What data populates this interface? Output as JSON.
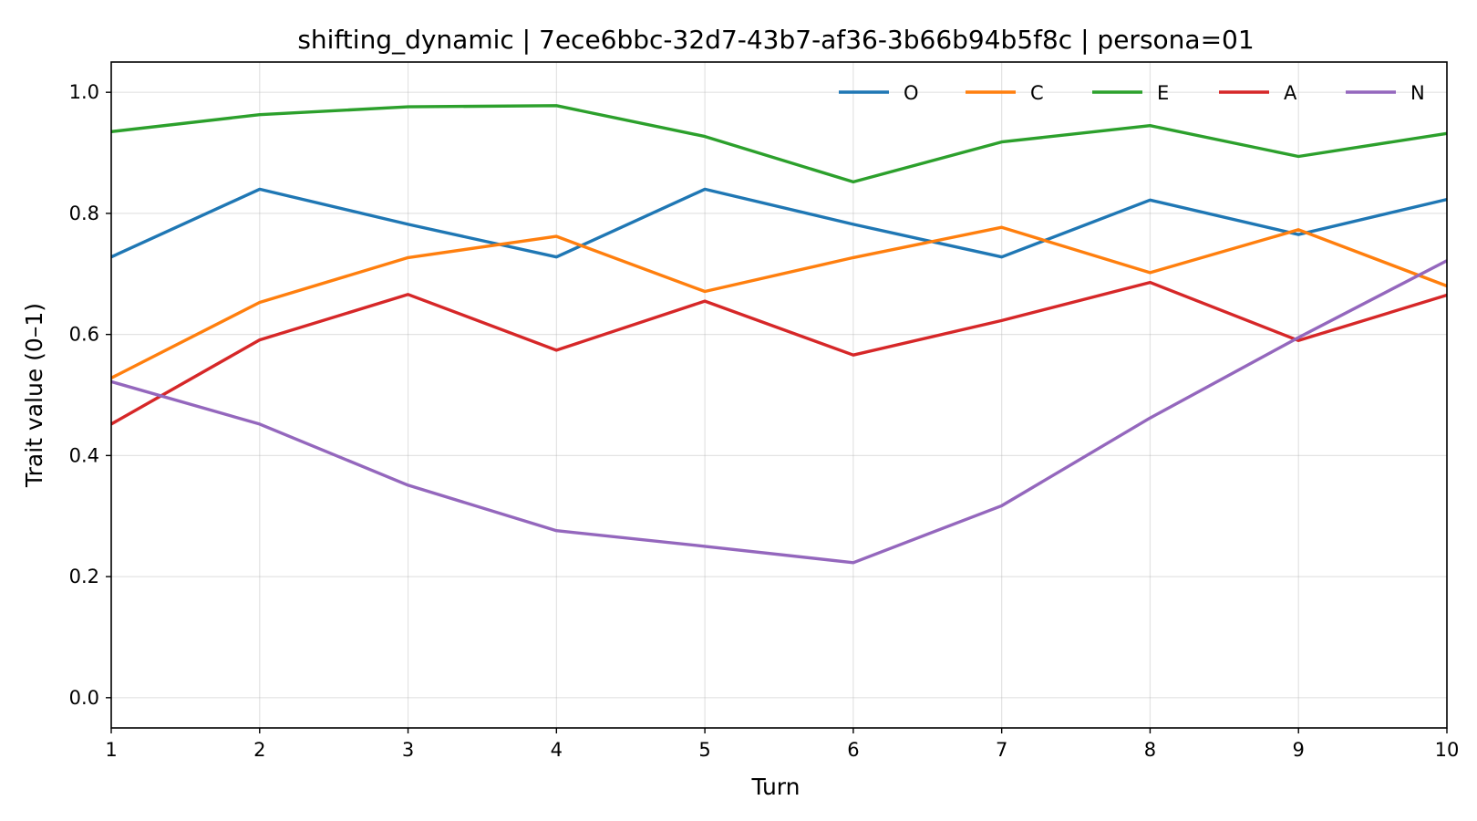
{
  "chart_data": {
    "type": "line",
    "title": "shifting_dynamic | 7ece6bbc-32d7-43b7-af36-3b66b94b5f8c | persona=01",
    "xlabel": "Turn",
    "ylabel": "Trait value (0–1)",
    "x": [
      1,
      2,
      3,
      4,
      5,
      6,
      7,
      8,
      9,
      10
    ],
    "xlim": [
      1,
      10
    ],
    "ylim": [
      -0.05,
      1.05
    ],
    "xticks": [
      "1",
      "2",
      "3",
      "4",
      "5",
      "6",
      "7",
      "8",
      "9",
      "10"
    ],
    "yticks": [
      "0.0",
      "0.2",
      "0.4",
      "0.6",
      "0.8",
      "1.0"
    ],
    "grid": true,
    "legend": "top-right",
    "series": [
      {
        "name": "O",
        "color": "#1f77b4",
        "values": [
          0.728,
          0.84,
          0.782,
          0.728,
          0.84,
          0.782,
          0.728,
          0.822,
          0.765,
          0.823
        ]
      },
      {
        "name": "C",
        "color": "#ff7f0e",
        "values": [
          0.528,
          0.653,
          0.727,
          0.762,
          0.671,
          0.727,
          0.777,
          0.702,
          0.773,
          0.68
        ]
      },
      {
        "name": "E",
        "color": "#2ca02c",
        "values": [
          0.935,
          0.963,
          0.976,
          0.978,
          0.927,
          0.852,
          0.918,
          0.945,
          0.894,
          0.932
        ]
      },
      {
        "name": "A",
        "color": "#d62728",
        "values": [
          0.452,
          0.591,
          0.666,
          0.574,
          0.655,
          0.566,
          0.623,
          0.686,
          0.59,
          0.665
        ]
      },
      {
        "name": "N",
        "color": "#9467bd",
        "values": [
          0.522,
          0.452,
          0.351,
          0.276,
          0.25,
          0.223,
          0.317,
          0.462,
          0.595,
          0.722
        ]
      }
    ]
  }
}
